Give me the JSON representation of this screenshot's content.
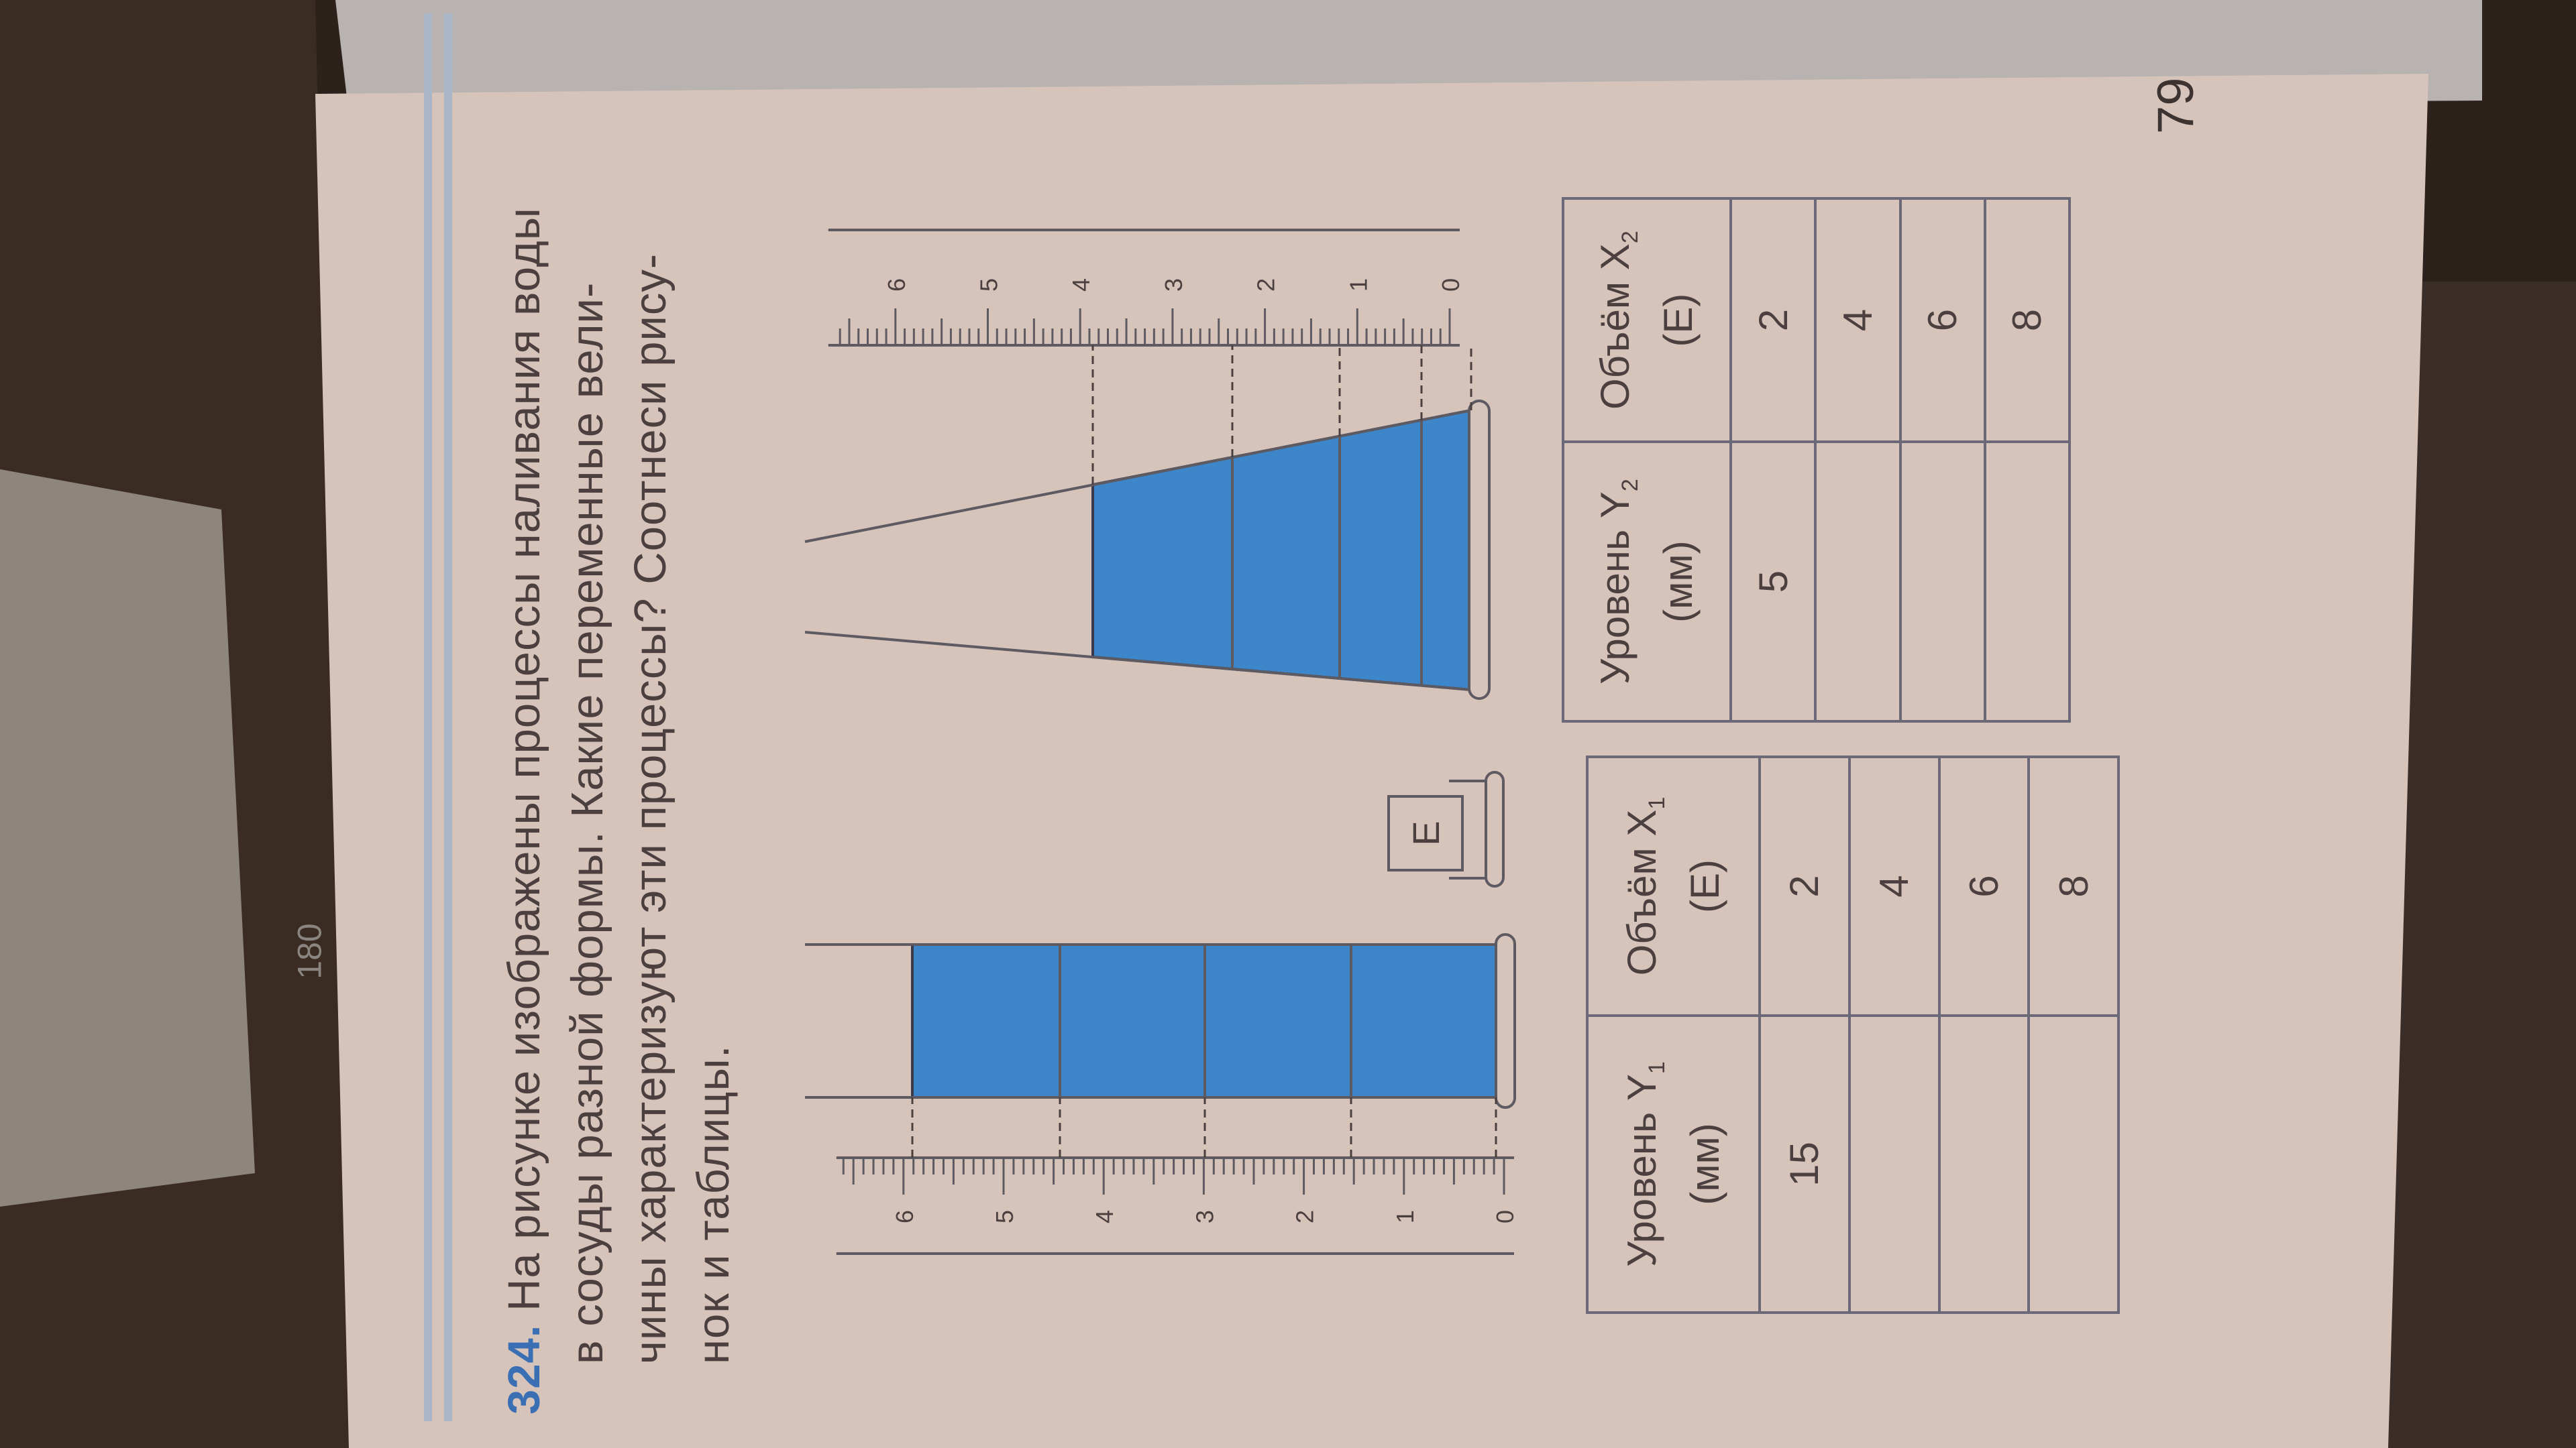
{
  "problem": {
    "number": "324.",
    "lines": [
      "На рисунке изображены процессы наливания воды",
      "в сосуды разной формы. Какие переменные вели-",
      "чины характеризуют эти процессы? Соотнеси рису-",
      "нок и таблицы."
    ]
  },
  "figure": {
    "ruler_labels": [
      "0",
      "1",
      "2",
      "3",
      "4",
      "5",
      "6"
    ],
    "unit_box_label": "E",
    "water_color": "#3d86c9"
  },
  "table1": {
    "headers": [
      {
        "label": "Уровень Y",
        "sub": "1",
        "unit": "(мм)"
      },
      {
        "label": "Объём X",
        "sub": "1",
        "unit": "(E)"
      }
    ],
    "rows": [
      [
        "15",
        "2"
      ],
      [
        "",
        "4"
      ],
      [
        "",
        "6"
      ],
      [
        "",
        "8"
      ]
    ]
  },
  "table2": {
    "headers": [
      {
        "label": "Уровень Y",
        "sub": "2",
        "unit": "(мм)"
      },
      {
        "label": "Объём X",
        "sub": "2",
        "unit": "(E)"
      }
    ],
    "rows": [
      [
        "5",
        "2"
      ],
      [
        "",
        "4"
      ],
      [
        "",
        "6"
      ],
      [
        "",
        "8"
      ]
    ]
  },
  "page_number": "79",
  "background_book_number": "180"
}
